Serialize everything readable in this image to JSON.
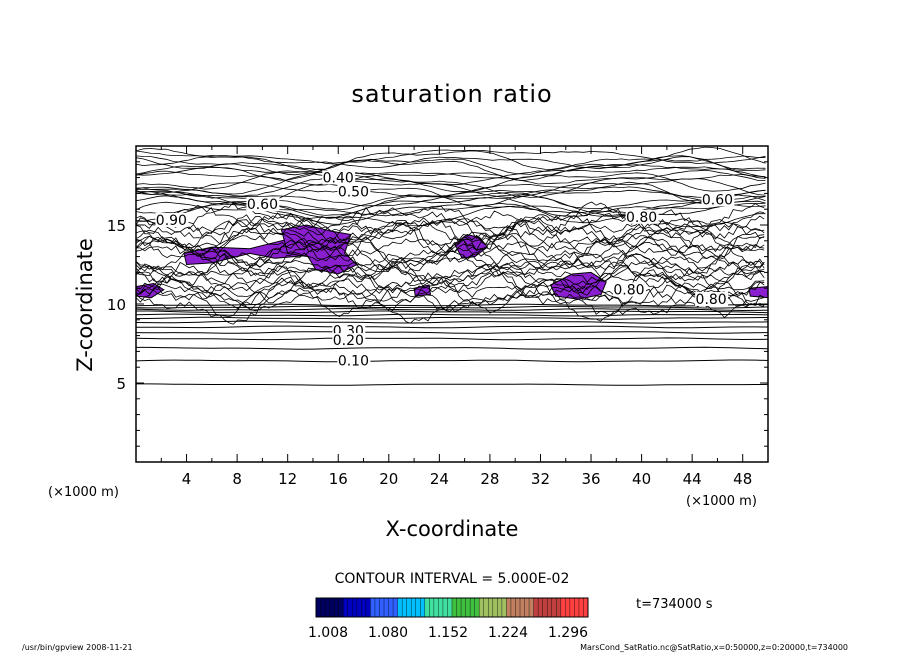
{
  "chart_data": {
    "type": "contour",
    "title": "saturation ratio",
    "xlabel": "X-coordinate",
    "ylabel": "Z-coordinate",
    "x_unit": "(×1000 m)",
    "z_unit": "(×1000 m)",
    "xlim": [
      0,
      50
    ],
    "ylim": [
      0,
      20
    ],
    "x_ticks": [
      "4",
      "8",
      "12",
      "16",
      "20",
      "24",
      "28",
      "32",
      "36",
      "40",
      "44",
      "48"
    ],
    "y_ticks": [
      "5",
      "10",
      "15"
    ],
    "contour_interval_text": "CONTOUR INTERVAL = 5.000E-02",
    "contour_labels": [
      "0.40",
      "0.50",
      "0.60",
      "0.60",
      "0.80",
      "0.80",
      "0.80",
      "0.90",
      "0.30",
      "0.20",
      "0.10"
    ],
    "contour_levels_lower": [
      0.1,
      0.2,
      0.3
    ],
    "time_text": "t=734000 s",
    "colorbar_ticks": [
      "1.008",
      "1.080",
      "1.152",
      "1.224",
      "1.296"
    ],
    "shaded_regions_color": "#8a1fd0",
    "colorbar_colors": [
      "#000060",
      "#0000c0",
      "#3060ff",
      "#00c0ff",
      "#40e0a0",
      "#40c040",
      "#a0c060",
      "#c08060",
      "#c04040",
      "#ff4040"
    ]
  },
  "footer": {
    "left": "/usr/bin/gpview   2008-11-21",
    "right": "MarsCond_SatRatio.nc@SatRatio,x=0:50000,z=0:20000,t=734000"
  }
}
